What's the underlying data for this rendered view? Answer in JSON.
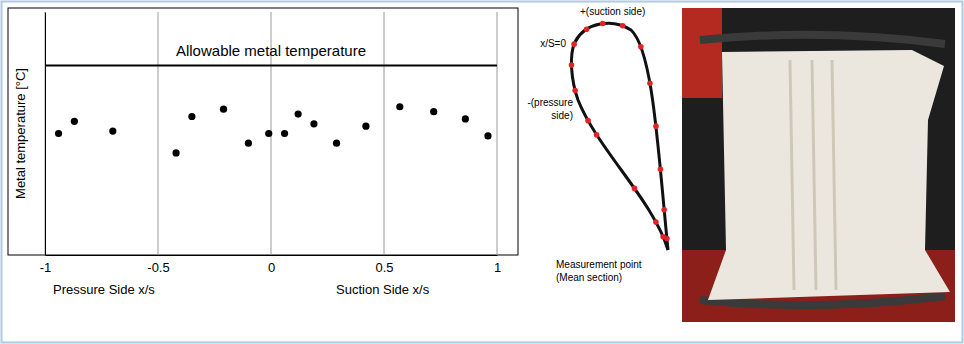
{
  "chart_data": {
    "type": "scatter",
    "y_label": "Metal temperature [°C]",
    "x_axis_labels": {
      "pressure": "Pressure Side x/s",
      "suction": "Suction Side x/s"
    },
    "x": [
      -0.94,
      -0.87,
      -0.7,
      -0.42,
      -0.35,
      -0.21,
      -0.1,
      -0.01,
      0.06,
      0.12,
      0.19,
      0.29,
      0.42,
      0.57,
      0.72,
      0.86,
      0.96
    ],
    "y": [
      50,
      55,
      51,
      42,
      57,
      60,
      46,
      50,
      50,
      58,
      54,
      46,
      53,
      61,
      59,
      56,
      49
    ],
    "color": "#000000",
    "marker": "circle",
    "xlim": [
      -1,
      1
    ],
    "xticks": [
      -1,
      -0.5,
      0,
      0.5,
      1
    ],
    "ylim": [
      0,
      100
    ],
    "yticks": [],
    "tick_labels": "x",
    "grid": true,
    "reference_line": {
      "label": "Allowable metal temperature",
      "value": 78
    }
  },
  "diagram": {
    "suction_label": "+(suction side)",
    "origin_label": "x/S=0",
    "pressure_label": "-(pressure side)",
    "measurement_label": [
      "Measurement point",
      "(Mean section)"
    ]
  }
}
